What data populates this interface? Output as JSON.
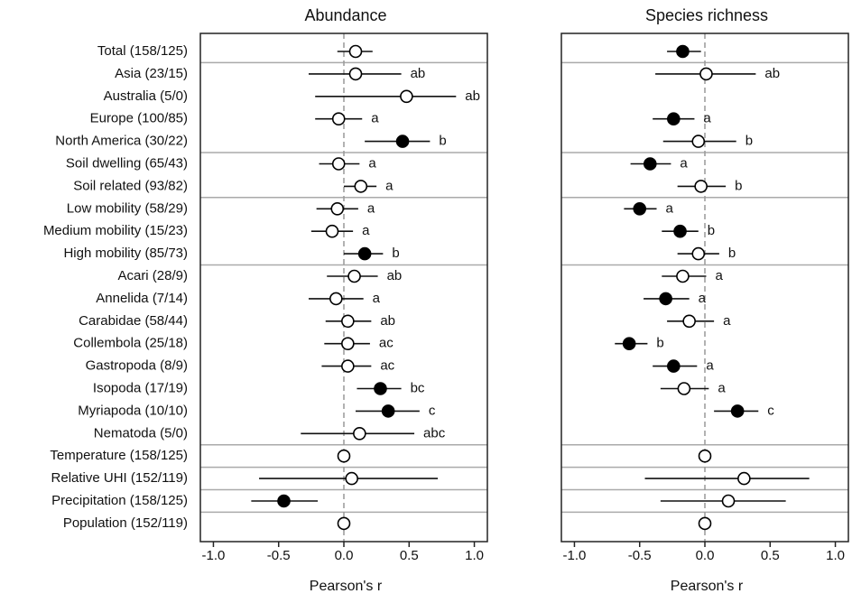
{
  "chart_data": [
    {
      "type": "forest",
      "title": "Abundance",
      "xlabel": "Pearson's r",
      "categories": [
        "Total (158/125)",
        "Asia (23/15)",
        "Australia (5/0)",
        "Europe (100/85)",
        "North America (30/22)",
        "Soil dwelling (65/43)",
        "Soil related (93/82)",
        "Low mobility (58/29)",
        "Medium mobility (15/23)",
        "High mobility (85/73)",
        "Acari (28/9)",
        "Annelida (7/14)",
        "Carabidae (58/44)",
        "Collembola (25/18)",
        "Gastropoda (8/9)",
        "Isopoda (17/19)",
        "Myriapoda (10/10)",
        "Nematoda (5/0)",
        "Temperature (158/125)",
        "Relative UHI (152/119)",
        "Precipitation (158/125)",
        "Population (152/119)"
      ],
      "values": [
        0.09,
        0.09,
        0.48,
        -0.04,
        0.45,
        -0.04,
        0.13,
        -0.05,
        -0.09,
        0.16,
        0.08,
        -0.06,
        0.03,
        0.03,
        0.03,
        0.28,
        0.34,
        0.12,
        0.0,
        0.06,
        -0.46,
        0.0
      ],
      "ci_low": [
        -0.05,
        -0.27,
        -0.22,
        -0.22,
        0.16,
        -0.19,
        0.0,
        -0.21,
        -0.25,
        0.0,
        -0.13,
        -0.27,
        -0.14,
        -0.15,
        -0.17,
        0.1,
        0.09,
        -0.33,
        null,
        -0.65,
        -0.71,
        null
      ],
      "ci_high": [
        0.22,
        0.44,
        0.86,
        0.14,
        0.66,
        0.12,
        0.25,
        0.11,
        0.07,
        0.3,
        0.26,
        0.15,
        0.21,
        0.2,
        0.21,
        0.44,
        0.58,
        0.54,
        null,
        0.72,
        -0.2,
        null
      ],
      "significant": [
        false,
        false,
        false,
        false,
        true,
        false,
        false,
        false,
        false,
        true,
        false,
        false,
        false,
        false,
        false,
        true,
        true,
        false,
        false,
        false,
        true,
        false
      ],
      "letters": [
        null,
        "ab",
        "ab",
        "a",
        "b",
        "a",
        "a",
        "a",
        "a",
        "b",
        "ab",
        "a",
        "ab",
        "ac",
        "ac",
        "bc",
        "c",
        "abc",
        null,
        null,
        null,
        null
      ],
      "xlim": [
        -1.1,
        1.1
      ],
      "reference_line": 0,
      "xticks": [
        {
          "value": -1,
          "label": "-1.0"
        },
        {
          "value": -0.5,
          "label": "-0.5"
        },
        {
          "value": 0,
          "label": "0.0"
        },
        {
          "value": 0.5,
          "label": "0.5"
        },
        {
          "value": 1,
          "label": "1.0"
        }
      ]
    },
    {
      "type": "forest",
      "title": "Species richness",
      "xlabel": "Pearson's r",
      "values": [
        -0.17,
        0.01,
        null,
        -0.24,
        -0.05,
        -0.42,
        -0.03,
        -0.5,
        -0.19,
        -0.05,
        -0.17,
        -0.3,
        -0.12,
        -0.58,
        -0.24,
        -0.16,
        0.25,
        null,
        0.0,
        0.3,
        0.18,
        0.0
      ],
      "ci_low": [
        -0.29,
        -0.38,
        null,
        -0.4,
        -0.32,
        -0.57,
        -0.21,
        -0.62,
        -0.33,
        -0.21,
        -0.33,
        -0.47,
        -0.29,
        -0.69,
        -0.4,
        -0.34,
        0.07,
        null,
        null,
        -0.46,
        -0.34,
        null
      ],
      "ci_high": [
        -0.03,
        0.39,
        null,
        -0.08,
        0.24,
        -0.26,
        0.16,
        -0.37,
        -0.05,
        0.11,
        0.01,
        -0.12,
        0.07,
        -0.44,
        -0.06,
        0.03,
        0.41,
        null,
        null,
        0.8,
        0.62,
        null
      ],
      "significant": [
        true,
        false,
        false,
        true,
        false,
        true,
        false,
        true,
        true,
        false,
        false,
        true,
        false,
        true,
        true,
        false,
        true,
        false,
        false,
        false,
        false,
        false
      ],
      "letters": [
        null,
        "ab",
        null,
        "a",
        "b",
        "a",
        "b",
        "a",
        "b",
        "b",
        "a",
        "a",
        "a",
        "b",
        "a",
        "a",
        "c",
        null,
        null,
        null,
        null,
        null
      ],
      "xlim": [
        -1.1,
        1.1
      ],
      "reference_line": 0,
      "xticks": [
        {
          "value": -1,
          "label": "-1.0"
        },
        {
          "value": -0.5,
          "label": "-0.5"
        },
        {
          "value": 0,
          "label": "0.0"
        },
        {
          "value": 0.5,
          "label": "0.5"
        },
        {
          "value": 1,
          "label": "1.0"
        }
      ]
    }
  ]
}
